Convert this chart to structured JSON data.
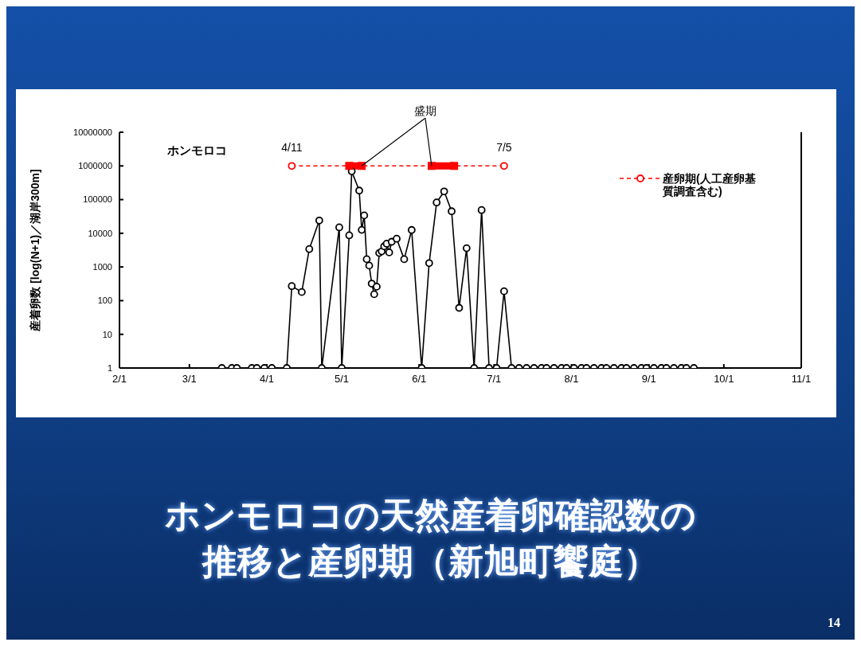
{
  "chart_data": {
    "type": "line",
    "title": "ホンモロコの天然産着卵確認数の推移と産卵期（新旭町饗庭）",
    "ylabel": "産着卵数 [log(N+1)／湖岸300m]",
    "log": "y",
    "grid": false,
    "legend": "top right",
    "marker": "circle",
    "xlim": [
      "--02-01",
      "--11-01"
    ],
    "xticks": [
      {
        "value": "--02-01",
        "label": "2/1"
      },
      {
        "value": "--03-01",
        "label": "3/1"
      },
      {
        "value": "--04-01",
        "label": "4/1"
      },
      {
        "value": "--05-01",
        "label": "5/1"
      },
      {
        "value": "--06-01",
        "label": "6/1"
      },
      {
        "value": "--07-01",
        "label": "7/1"
      },
      {
        "value": "--08-01",
        "label": "8/1"
      },
      {
        "value": "--09-01",
        "label": "9/1"
      },
      {
        "value": "--10-01",
        "label": "10/1"
      },
      {
        "value": "--11-01",
        "label": "11/1"
      }
    ],
    "ylim": [
      1,
      10000000
    ],
    "yticks": [
      1,
      10,
      100,
      1000,
      10000,
      100000,
      1000000,
      10000000
    ],
    "series": [
      {
        "color": "#000000",
        "line_style": "solid",
        "x": [
          "--03-14",
          "--03-18",
          "--03-20",
          "--03-26",
          "--03-28",
          "--03-31",
          "--04-03",
          "--04-09",
          "--04-11",
          "--04-15",
          "--04-18",
          "--04-22",
          "--04-23",
          "--04-30",
          "--05-01",
          "--05-04",
          "--05-05",
          "--05-08",
          "--05-09",
          "--05-10",
          "--05-11",
          "--05-12",
          "--05-13",
          "--05-14",
          "--05-15",
          "--05-16",
          "--05-17",
          "--05-18",
          "--05-19",
          "--05-20",
          "--05-21",
          "--05-23",
          "--05-26",
          "--05-29",
          "--06-02",
          "--06-05",
          "--06-08",
          "--06-11",
          "--06-14",
          "--06-17",
          "--06-20",
          "--06-23",
          "--06-26",
          "--06-29",
          "--07-02",
          "--07-05",
          "--07-08",
          "--07-11",
          "--07-14",
          "--07-17",
          "--07-20",
          "--07-22",
          "--07-25",
          "--07-28",
          "--07-30",
          "--08-02",
          "--08-05",
          "--08-07",
          "--08-10",
          "--08-13",
          "--08-15",
          "--08-18",
          "--08-21",
          "--08-23",
          "--08-26",
          "--08-29",
          "--08-31",
          "--09-03",
          "--09-06",
          "--09-08",
          "--09-11",
          "--09-14",
          "--09-16",
          "--09-19"
        ],
        "values": [
          1,
          1,
          1,
          1,
          1,
          1,
          1,
          1,
          270,
          180,
          3400,
          24000,
          1,
          15000,
          1,
          8700,
          690000,
          185000,
          12600,
          34000,
          1700,
          1100,
          320,
          155,
          260,
          2600,
          2900,
          4100,
          4900,
          2700,
          5600,
          6900,
          1700,
          12500,
          1,
          1300,
          82000,
          175000,
          45000,
          61,
          3600,
          1,
          49000,
          1,
          1,
          190,
          1,
          1,
          1,
          1,
          1,
          1,
          1,
          1,
          1,
          1,
          1,
          1,
          1,
          1,
          1,
          1,
          1,
          1,
          1,
          1,
          1,
          1,
          1,
          1,
          1,
          1,
          1,
          1
        ]
      },
      {
        "name": "産卵期(人工産卵基質調査含む)",
        "color": "#ff0000",
        "line_style": "dashed",
        "x": [
          "--04-11",
          "--07-05"
        ],
        "values": [
          1000000,
          1000000
        ]
      },
      {
        "color": "#ff0000",
        "marker": "square",
        "line_style": "solid",
        "x": [
          "--05-04",
          "--05-09",
          "--05-20",
          "--06-06",
          "--06-15"
        ],
        "values": [
          1000000,
          1000000,
          null,
          1000000,
          1000000
        ]
      }
    ],
    "annotations": [
      "ホンモロコ",
      "14",
      {
        "text": "盛期",
        "x": "--06-06",
        "y": 1000000
      },
      {
        "text": "4/11",
        "x": "--04-11",
        "y": 1000000
      },
      {
        "text": "7/5",
        "x": "--07-05",
        "y": 1000000
      }
    ]
  }
}
